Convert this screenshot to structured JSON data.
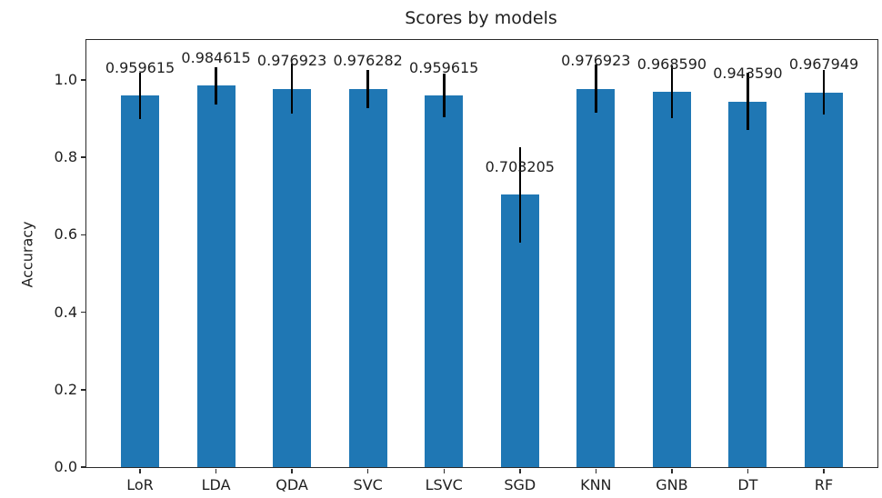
{
  "chart_data": {
    "type": "bar",
    "title": "Scores by models",
    "xlabel": "",
    "ylabel": "Accuracy",
    "categories": [
      "LoR",
      "LDA",
      "QDA",
      "SVC",
      "LSVC",
      "SGD",
      "KNN",
      "GNB",
      "DT",
      "RF"
    ],
    "values": [
      0.959615,
      0.984615,
      0.976923,
      0.976282,
      0.959615,
      0.703205,
      0.976923,
      0.96859,
      0.94359,
      0.967949
    ],
    "value_labels": [
      "0.959615",
      "0.984615",
      "0.976923",
      "0.976282",
      "0.959615",
      "0.703205",
      "0.976923",
      "0.968590",
      "0.943590",
      "0.967949"
    ],
    "errors": [
      0.06,
      0.048,
      0.065,
      0.05,
      0.057,
      0.123,
      0.062,
      0.068,
      0.074,
      0.057
    ],
    "yticks": [
      0.0,
      0.2,
      0.4,
      0.6,
      0.8,
      1.0
    ],
    "ytick_labels": [
      "0.0",
      "0.2",
      "0.4",
      "0.6",
      "0.8",
      "1.0"
    ],
    "ylim": [
      0,
      1.103
    ],
    "bar_color": "#1f77b4",
    "error_color": "#000000",
    "grid": false,
    "legend_position": "none"
  }
}
